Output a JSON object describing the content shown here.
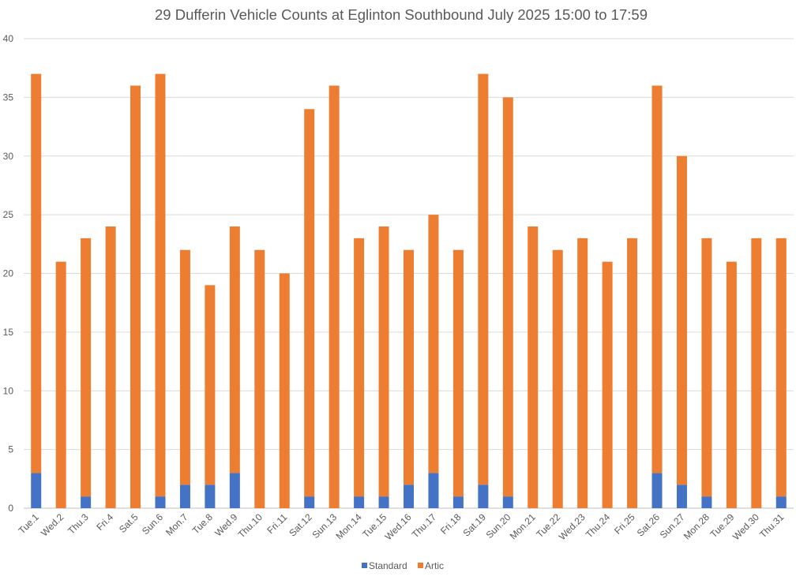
{
  "chart_data": {
    "type": "bar",
    "stacked": true,
    "title": "29 Dufferin Vehicle Counts at Eglinton Southbound July 2025  15:00 to 17:59",
    "xlabel": "",
    "ylabel": "",
    "ylim": [
      0,
      40
    ],
    "yticks": [
      0,
      5,
      10,
      15,
      20,
      25,
      30,
      35,
      40
    ],
    "grid": true,
    "legend": "bottom",
    "categories": [
      "Tue.1",
      "Wed.2",
      "Thu.3",
      "Fri.4",
      "Sat.5",
      "Sun.6",
      "Mon.7",
      "Tue.8",
      "Wed.9",
      "Thu.10",
      "Fri.11",
      "Sat.12",
      "Sun.13",
      "Mon.14",
      "Tue.15",
      "Wed.16",
      "Thu.17",
      "Fri.18",
      "Sat.19",
      "Sun.20",
      "Mon.21",
      "Tue.22",
      "Wed.23",
      "Thu.24",
      "Fri.25",
      "Sat.26",
      "Sun.27",
      "Mon.28",
      "Tue.29",
      "Wed.30",
      "Thu.31"
    ],
    "series": [
      {
        "name": "Standard",
        "color": "#4472C4",
        "values": [
          3,
          0,
          1,
          0,
          0,
          1,
          2,
          2,
          3,
          0,
          0,
          1,
          0,
          1,
          1,
          2,
          3,
          1,
          2,
          1,
          0,
          0,
          0,
          0,
          0,
          3,
          2,
          1,
          0,
          0,
          1
        ]
      },
      {
        "name": "Artic",
        "color": "#ED7D31",
        "values": [
          34,
          21,
          22,
          24,
          36,
          36,
          20,
          17,
          21,
          22,
          20,
          33,
          36,
          22,
          23,
          20,
          22,
          21,
          35,
          34,
          24,
          22,
          23,
          21,
          23,
          33,
          28,
          22,
          21,
          23,
          22
        ]
      }
    ]
  }
}
